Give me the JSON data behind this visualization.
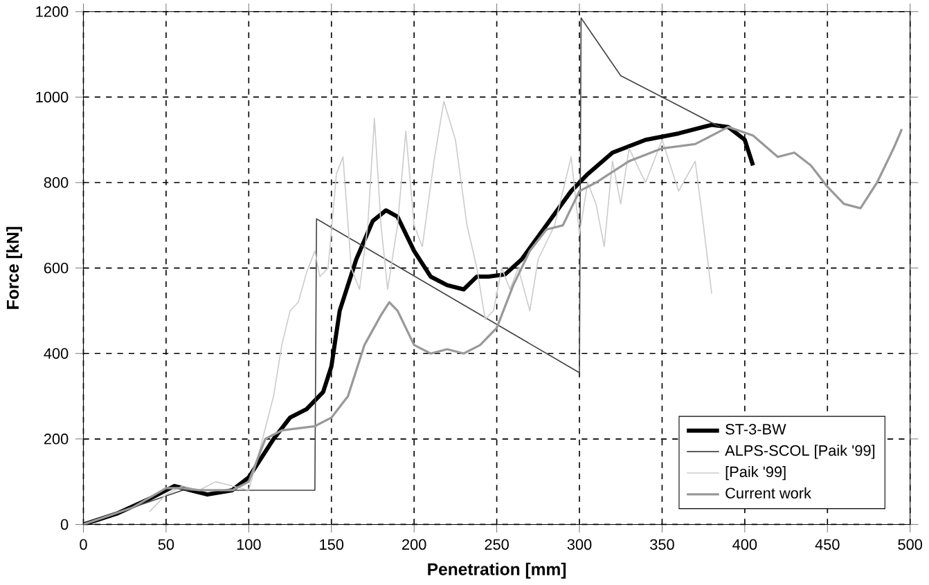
{
  "chart_data": {
    "type": "line",
    "xlabel": "Penetration [mm]",
    "ylabel": "Force [kN]",
    "xlim": [
      0,
      500
    ],
    "xticks": [
      0,
      50,
      100,
      150,
      200,
      250,
      300,
      350,
      400,
      450,
      500
    ],
    "ylim": [
      0,
      1200
    ],
    "yticks": [
      0,
      200,
      400,
      600,
      800,
      1000,
      1200
    ],
    "grid": true,
    "legend": "bottom right",
    "line_style": "solid",
    "marker": "none",
    "series": [
      {
        "name": "ST-3-BW",
        "color": "#000000",
        "x": [
          0,
          20,
          40,
          55,
          65,
          75,
          90,
          100,
          115,
          125,
          135,
          145,
          150,
          155,
          165,
          175,
          183,
          190,
          200,
          210,
          220,
          230,
          238,
          245,
          255,
          265,
          280,
          295,
          305,
          320,
          340,
          360,
          380,
          390,
          400,
          405
        ],
        "values": [
          0,
          25,
          60,
          90,
          80,
          70,
          80,
          110,
          200,
          250,
          270,
          310,
          370,
          500,
          620,
          710,
          735,
          720,
          640,
          580,
          560,
          550,
          580,
          580,
          585,
          620,
          700,
          780,
          820,
          870,
          900,
          915,
          935,
          930,
          900,
          840
        ]
      },
      {
        "name": "ALPS-SCOL [Paik '99]",
        "color": "#444444",
        "x": [
          0,
          60,
          140,
          141,
          300,
          301,
          325,
          355,
          385
        ],
        "values": [
          0,
          80,
          80,
          715,
          355,
          1185,
          1050,
          990,
          930
        ]
      },
      {
        "name": "[Paik '99]",
        "color": "#cccccc",
        "x": [
          40,
          50,
          60,
          70,
          80,
          90,
          100,
          105,
          115,
          120,
          125,
          130,
          135,
          140,
          143,
          148,
          153,
          157,
          162,
          167,
          172,
          176,
          180,
          184,
          190,
          195,
          200,
          205,
          212,
          218,
          225,
          232,
          238,
          243,
          248,
          253,
          258,
          263,
          270,
          275,
          285,
          295,
          300,
          305,
          310,
          315,
          320,
          325,
          330,
          340,
          350,
          360,
          370,
          375,
          380
        ],
        "values": [
          30,
          70,
          90,
          80,
          100,
          90,
          80,
          150,
          300,
          420,
          500,
          520,
          590,
          640,
          580,
          600,
          820,
          860,
          600,
          550,
          700,
          950,
          700,
          550,
          700,
          920,
          700,
          650,
          850,
          990,
          900,
          700,
          600,
          480,
          500,
          600,
          550,
          600,
          500,
          620,
          700,
          860,
          680,
          800,
          750,
          650,
          850,
          750,
          880,
          800,
          900,
          780,
          850,
          700,
          540
        ]
      },
      {
        "name": "Current work",
        "color": "#999999",
        "x": [
          0,
          30,
          50,
          60,
          70,
          90,
          100,
          110,
          120,
          130,
          140,
          150,
          160,
          170,
          180,
          185,
          190,
          200,
          210,
          220,
          230,
          240,
          250,
          260,
          270,
          280,
          290,
          300,
          310,
          330,
          350,
          370,
          390,
          405,
          420,
          430,
          440,
          450,
          460,
          470,
          480,
          490,
          495
        ],
        "values": [
          0,
          40,
          85,
          85,
          80,
          80,
          100,
          200,
          220,
          225,
          230,
          250,
          300,
          420,
          490,
          520,
          500,
          420,
          400,
          410,
          400,
          420,
          460,
          560,
          640,
          690,
          700,
          780,
          800,
          850,
          880,
          890,
          930,
          910,
          860,
          870,
          840,
          790,
          750,
          740,
          800,
          880,
          925
        ]
      }
    ]
  }
}
